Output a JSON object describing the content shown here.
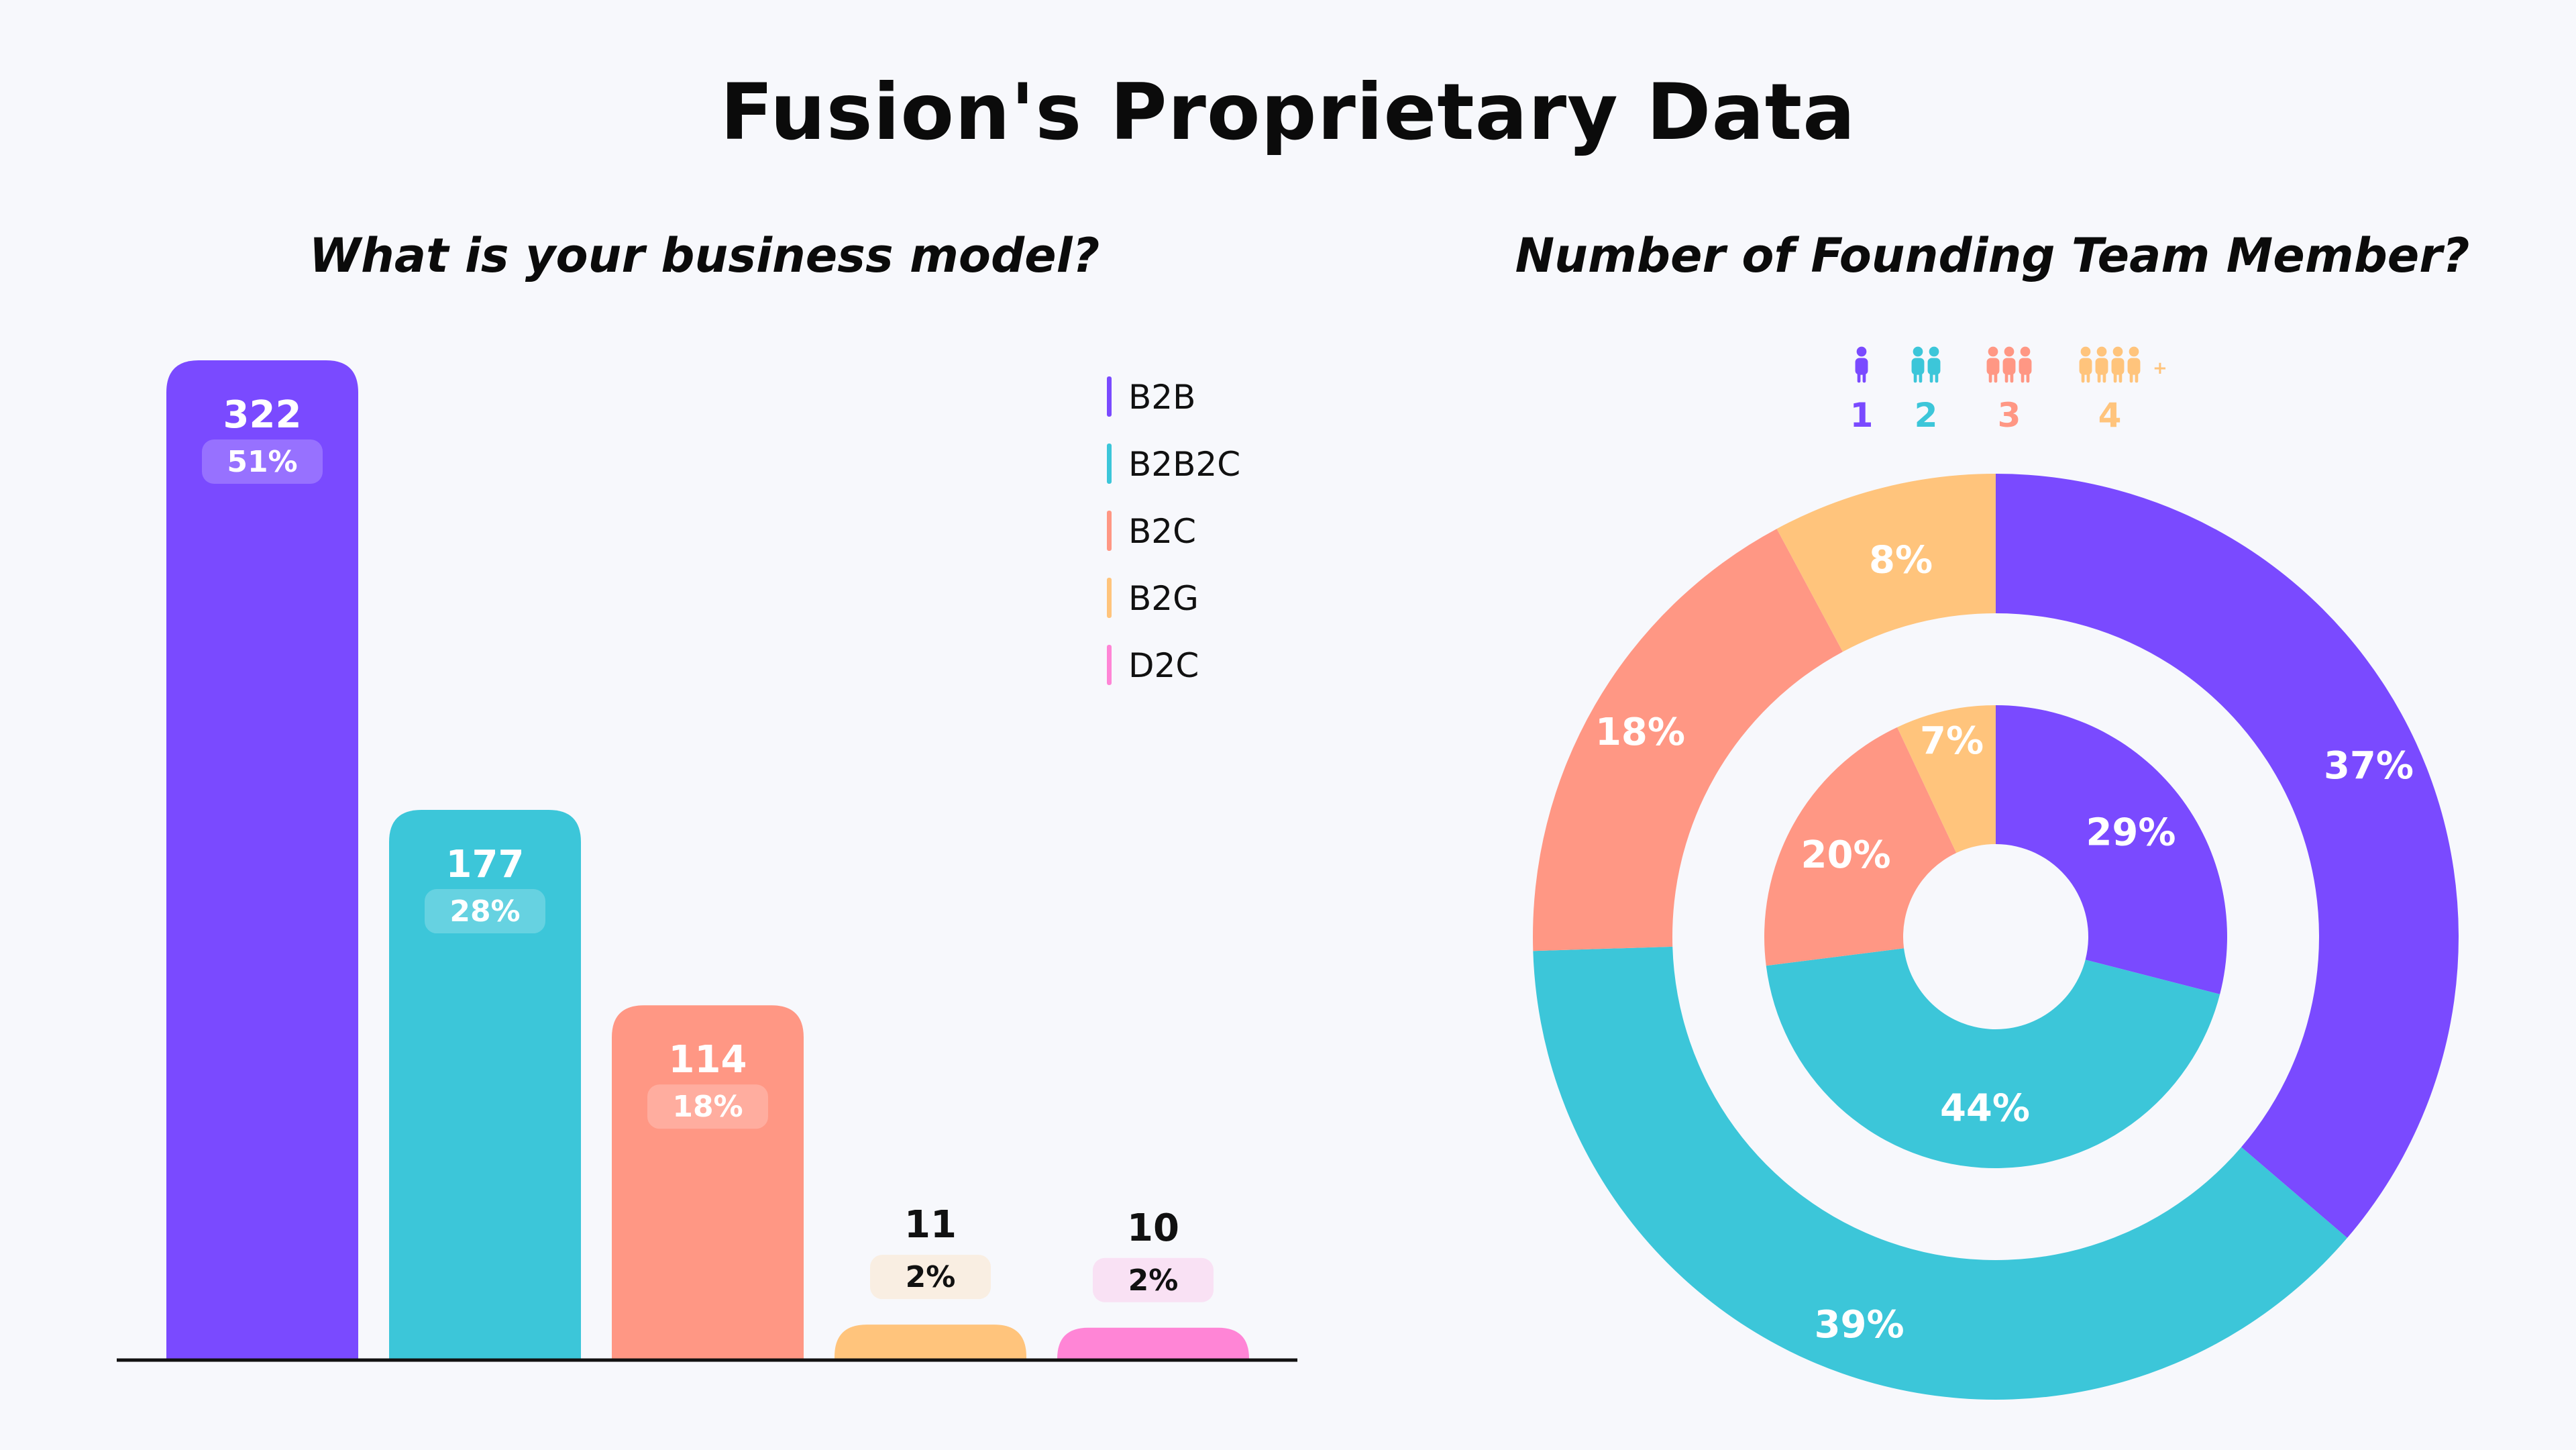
{
  "title": "Fusion's Proprietary Data",
  "chart_data": [
    {
      "type": "bar",
      "title": "What is your business model?",
      "categories": [
        "B2B",
        "B2B2C",
        "B2C",
        "B2G",
        "D2C"
      ],
      "values": [
        322,
        177,
        114,
        11,
        10
      ],
      "percent_labels": [
        "51%",
        "28%",
        "18%",
        "2%",
        "2%"
      ],
      "colors": [
        "#7A4AFF",
        "#3CC6D9",
        "#FF9784",
        "#FFC47C",
        "#FF85D6"
      ],
      "legend": [
        "B2B",
        "B2B2C",
        "B2C",
        "B2G",
        "D2C"
      ],
      "legend_position": "top-right",
      "ylim": [
        0,
        322
      ],
      "grid": false
    },
    {
      "type": "pie",
      "title": "Number of Founding Team Member?",
      "style": "nested-donut",
      "legend": [
        "1",
        "2",
        "3",
        "4"
      ],
      "legend_icons": [
        "person-1-icon",
        "person-2-icon",
        "person-3-icon",
        "person-4-plus-icon"
      ],
      "legend_position": "top",
      "colors": [
        "#7A4AFF",
        "#3CC6D9",
        "#FF9784",
        "#FFC47C"
      ],
      "series": [
        {
          "ring": "outer",
          "values": [
            37,
            39,
            18,
            8
          ],
          "labels": [
            "37%",
            "39%",
            "18%",
            "8%"
          ]
        },
        {
          "ring": "inner",
          "values": [
            29,
            44,
            20,
            7
          ],
          "labels": [
            "29%",
            "44%",
            "20%",
            "7%"
          ]
        }
      ]
    }
  ]
}
